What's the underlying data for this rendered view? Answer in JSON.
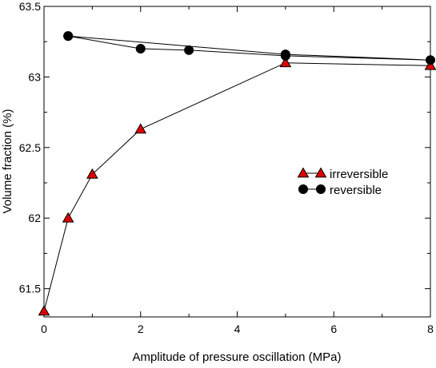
{
  "chart_data": {
    "type": "line",
    "xlabel": "Amplitude of pressure oscillation (MPa)",
    "ylabel": "Volume fraction (%)",
    "xlim": [
      0,
      8
    ],
    "ylim": [
      61.3,
      63.5
    ],
    "x_ticks": [
      0,
      2,
      4,
      6,
      8
    ],
    "y_ticks": [
      61.5,
      62,
      62.5,
      63,
      63.5
    ],
    "x_tick_labels": [
      "0",
      "2",
      "4",
      "6",
      "8"
    ],
    "y_tick_labels": [
      "61.5",
      "62",
      "62.5",
      "63",
      "63.5"
    ],
    "grid": false,
    "legend_position": "center-right",
    "series": [
      {
        "name": "irreversible",
        "marker": "triangle",
        "color": "#dd0000",
        "x": [
          0,
          0.5,
          1,
          2,
          5,
          8
        ],
        "y": [
          61.34,
          62.0,
          62.31,
          62.63,
          63.1,
          63.08
        ]
      },
      {
        "name": "reversible",
        "marker": "circle",
        "color": "#000000",
        "x": [
          0.5,
          2,
          3,
          5,
          8,
          5,
          0.5
        ],
        "y": [
          63.29,
          63.2,
          63.19,
          63.15,
          63.12,
          63.16,
          63.29
        ]
      }
    ]
  }
}
